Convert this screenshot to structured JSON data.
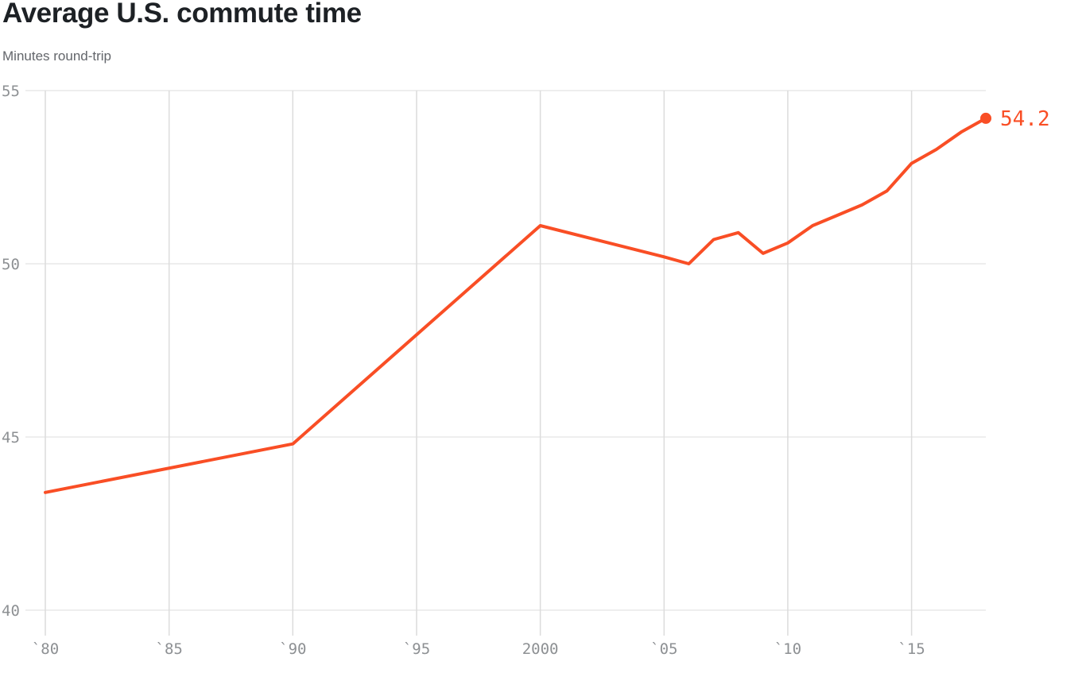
{
  "header": {
    "title": "Average U.S. commute time",
    "subtitle": "Minutes round-trip"
  },
  "chart_data": {
    "type": "line",
    "title": "Average U.S. commute time",
    "ylabel": "Minutes round-trip",
    "xlabel": "",
    "x": [
      1980,
      1990,
      2000,
      2005,
      2006,
      2007,
      2008,
      2009,
      2010,
      2011,
      2012,
      2013,
      2014,
      2015,
      2016,
      2017,
      2018
    ],
    "values": [
      43.4,
      44.8,
      51.1,
      50.2,
      50.0,
      50.7,
      50.9,
      50.3,
      50.6,
      51.1,
      51.4,
      51.7,
      52.1,
      52.9,
      53.3,
      53.8,
      54.2
    ],
    "end_label": "54.2",
    "x_ticks": [
      {
        "year": 1980,
        "label": "`80"
      },
      {
        "year": 1985,
        "label": "`85"
      },
      {
        "year": 1990,
        "label": "`90"
      },
      {
        "year": 1995,
        "label": "`95"
      },
      {
        "year": 2000,
        "label": "2000"
      },
      {
        "year": 2005,
        "label": "`05"
      },
      {
        "year": 2010,
        "label": "`10"
      },
      {
        "year": 2015,
        "label": "`15"
      }
    ],
    "y_ticks": [
      55,
      50,
      45,
      40
    ],
    "xlim": [
      1980,
      2018
    ],
    "ylim": [
      39.3,
      55
    ],
    "grid": true,
    "legend": false,
    "colors": {
      "line": "#f94e25",
      "grid_horizontal": "#e8e8e8",
      "grid_vertical": "#dcdcdc",
      "tick_text": "#8d9093",
      "title_text": "#1d2125",
      "subtitle_text": "#63666b",
      "background": "#ffffff"
    }
  }
}
